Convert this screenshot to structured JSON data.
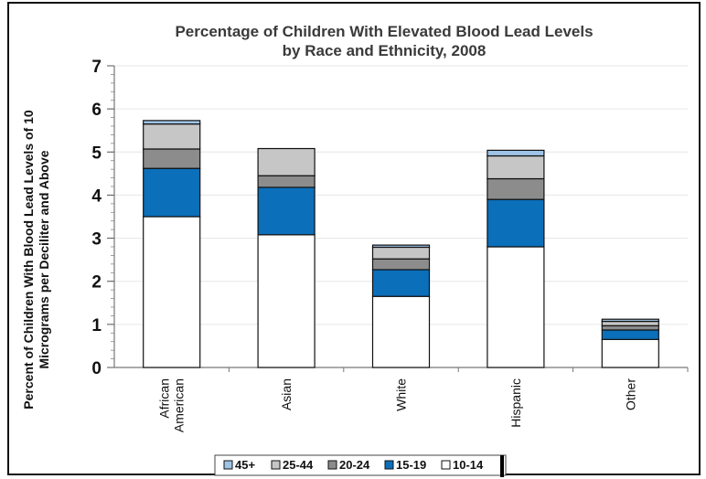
{
  "chart_data": {
    "type": "bar",
    "stacked": true,
    "title_lines": [
      "Percentage of Children With Elevated Blood Lead Levels",
      "by Race and Ethnicity, 2008"
    ],
    "ylabel_lines": [
      "Percent of Children With Blood Lead Levels of 10",
      "Micrograms per Deciliter and Above"
    ],
    "category_lines": [
      [
        "African",
        "American"
      ],
      [
        "Asian"
      ],
      [
        "White"
      ],
      [
        "Hispanic"
      ],
      [
        "Other"
      ]
    ],
    "ylim": [
      0,
      7
    ],
    "yticks": [
      "0",
      "1",
      "2",
      "3",
      "4",
      "5",
      "6",
      "7"
    ],
    "grid": true,
    "legend_position": "bottom",
    "series": [
      {
        "name": "10-14",
        "color": "#ffffff",
        "values": [
          3.5,
          3.08,
          1.65,
          2.8,
          0.65
        ]
      },
      {
        "name": "15-19",
        "color": "#0b6fba",
        "values": [
          1.12,
          1.1,
          0.62,
          1.1,
          0.22
        ]
      },
      {
        "name": "20-24",
        "color": "#8c8c8c",
        "values": [
          0.45,
          0.27,
          0.25,
          0.48,
          0.1
        ]
      },
      {
        "name": "25-44",
        "color": "#c6c6c6",
        "values": [
          0.58,
          0.63,
          0.27,
          0.53,
          0.1
        ]
      },
      {
        "name": "45+",
        "color": "#9ec3e6",
        "values": [
          0.08,
          0.0,
          0.05,
          0.13,
          0.05
        ]
      }
    ],
    "legend_order": [
      "45+",
      "25-44",
      "20-24",
      "15-19",
      "10-14"
    ]
  }
}
